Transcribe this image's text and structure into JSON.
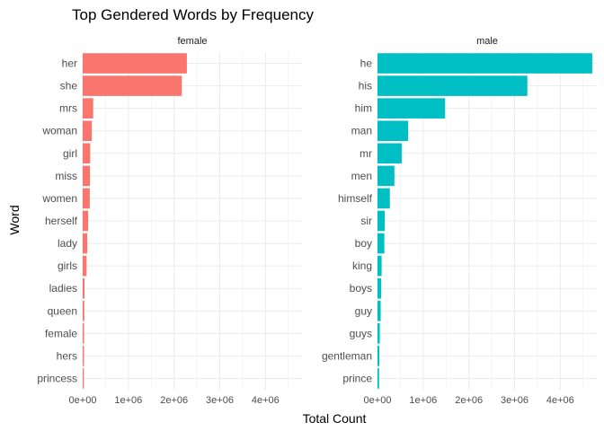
{
  "chart_data": {
    "type": "bar",
    "title": "Top Gendered Words by Frequency",
    "xlabel": "Total Count",
    "ylabel": "Word",
    "xlim": [
      0,
      4800000
    ],
    "xticks": [
      0,
      1000000,
      2000000,
      3000000,
      4000000
    ],
    "xtick_labels": [
      "0e+00",
      "1e+06",
      "2e+06",
      "3e+06",
      "4e+06"
    ],
    "grid": true,
    "orientation": "horizontal",
    "facets": [
      {
        "name": "female",
        "color": "#F8766D",
        "categories": [
          "her",
          "she",
          "mrs",
          "woman",
          "girl",
          "miss",
          "women",
          "herself",
          "lady",
          "girls",
          "ladies",
          "queen",
          "female",
          "hers",
          "princess"
        ],
        "values": [
          2280000,
          2170000,
          230000,
          200000,
          165000,
          160000,
          155000,
          120000,
          100000,
          85000,
          40000,
          35000,
          30000,
          28000,
          25000
        ]
      },
      {
        "name": "male",
        "color": "#00BFC4",
        "categories": [
          "he",
          "his",
          "him",
          "man",
          "mr",
          "men",
          "himself",
          "sir",
          "boy",
          "king",
          "boys",
          "guy",
          "guys",
          "gentleman",
          "prince"
        ],
        "values": [
          4700000,
          3280000,
          1480000,
          670000,
          530000,
          370000,
          270000,
          160000,
          150000,
          90000,
          80000,
          70000,
          50000,
          40000,
          35000
        ]
      }
    ]
  }
}
